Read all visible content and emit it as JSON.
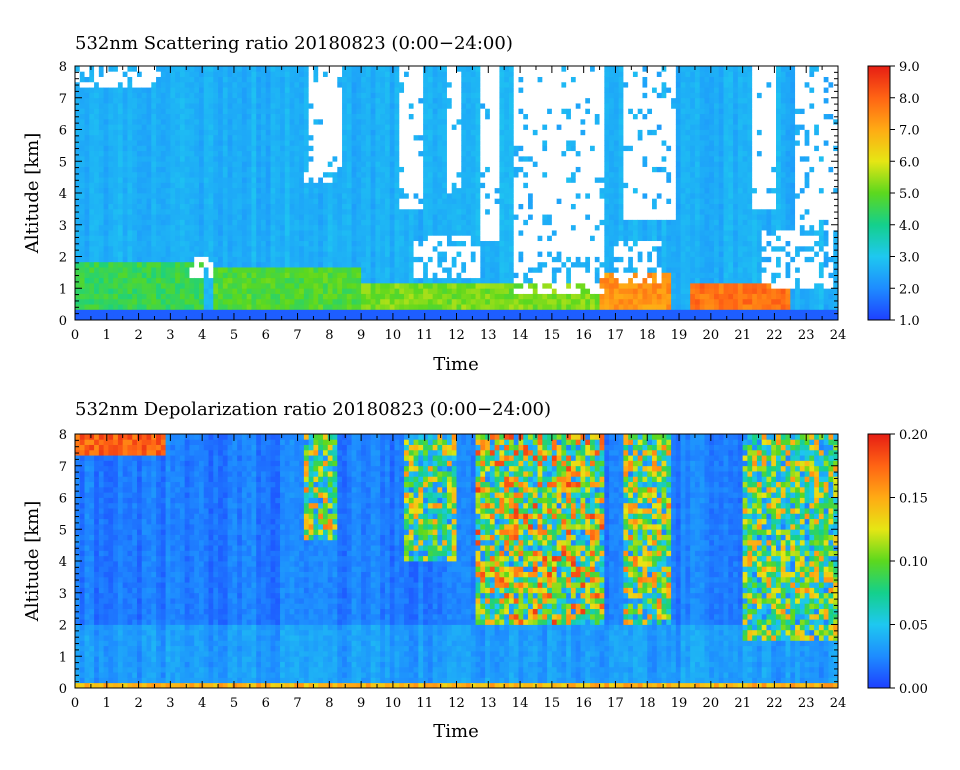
{
  "chart_data": [
    {
      "type": "heatmap",
      "title": "532nm Scattering ratio  20180823 (0:00−24:00)",
      "xlabel": "Time",
      "ylabel": "Altitude [km]",
      "xlim": [
        0,
        24
      ],
      "ylim": [
        0,
        8
      ],
      "xticks": [
        "0",
        "1",
        "2",
        "3",
        "4",
        "5",
        "6",
        "7",
        "8",
        "9",
        "10",
        "11",
        "12",
        "13",
        "14",
        "15",
        "16",
        "17",
        "18",
        "19",
        "20",
        "21",
        "22",
        "23",
        "24"
      ],
      "yticks": [
        "0",
        "1",
        "2",
        "3",
        "4",
        "5",
        "6",
        "7",
        "8"
      ],
      "colorbar": {
        "range": [
          1.0,
          9.0
        ],
        "ticks": [
          "1.0",
          "2.0",
          "3.0",
          "4.0",
          "5.0",
          "6.0",
          "7.0",
          "8.0",
          "9.0"
        ]
      },
      "clear_sky_value": 2.6,
      "boundary_layer": [
        {
          "x": [
            0,
            4
          ],
          "alt": [
            0.4,
            1.8
          ],
          "value": 4.5
        },
        {
          "x": [
            4.3,
            9
          ],
          "alt": [
            0.4,
            1.6
          ],
          "value": 4.8
        },
        {
          "x": [
            9,
            16.5
          ],
          "alt": [
            0.4,
            1.2
          ],
          "value": 5.2
        },
        {
          "x": [
            16.5,
            18.8
          ],
          "alt": [
            0.4,
            1.5
          ],
          "value": 7.3
        },
        {
          "x": [
            19.3,
            22.5
          ],
          "alt": [
            0.3,
            1.1
          ],
          "value": 7.8
        }
      ],
      "data_gaps": [
        {
          "x": [
            10.2,
            10.9
          ],
          "alt": [
            3.5,
            8
          ]
        },
        {
          "x": [
            11.7,
            12.1
          ],
          "alt": [
            4,
            8
          ]
        },
        {
          "x": [
            12.7,
            13.4
          ],
          "alt": [
            2.5,
            8
          ]
        },
        {
          "x": [
            13.8,
            16.7
          ],
          "alt": [
            2.2,
            8
          ]
        },
        {
          "x": [
            17.3,
            18.9
          ],
          "alt": [
            3.2,
            8
          ]
        },
        {
          "x": [
            21.3,
            22.1
          ],
          "alt": [
            3.5,
            8
          ]
        },
        {
          "x": [
            22.6,
            24
          ],
          "alt": [
            2.8,
            8
          ]
        },
        {
          "x": [
            7.3,
            8.4
          ],
          "alt": [
            4.8,
            8
          ]
        }
      ],
      "clouds": [
        {
          "x": [
            0,
            2.7
          ],
          "alt": [
            7.3,
            8
          ],
          "value": 9
        },
        {
          "x": [
            7.2,
            8.3
          ],
          "alt": [
            4.3,
            4.8
          ],
          "value": 9
        },
        {
          "x": [
            3.6,
            4.4
          ],
          "alt": [
            1.4,
            2.0
          ],
          "value": 9
        },
        {
          "x": [
            10.6,
            12.8
          ],
          "alt": [
            1.3,
            2.6
          ],
          "value": 9
        },
        {
          "x": [
            13.8,
            16.6
          ],
          "alt": [
            0.9,
            2.6
          ],
          "value": 9
        },
        {
          "x": [
            17.0,
            18.5
          ],
          "alt": [
            1.1,
            2.5
          ],
          "value": 9
        },
        {
          "x": [
            21.6,
            23.8
          ],
          "alt": [
            1.0,
            2.8
          ],
          "value": 9
        }
      ]
    },
    {
      "type": "heatmap",
      "title": "532nm Depolarization ratio  20180823 (0:00−24:00)",
      "xlabel": "Time",
      "ylabel": "Altitude [km]",
      "xlim": [
        0,
        24
      ],
      "ylim": [
        0,
        8
      ],
      "xticks": [
        "0",
        "1",
        "2",
        "3",
        "4",
        "5",
        "6",
        "7",
        "8",
        "9",
        "10",
        "11",
        "12",
        "13",
        "14",
        "15",
        "16",
        "17",
        "18",
        "19",
        "20",
        "21",
        "22",
        "23",
        "24"
      ],
      "yticks": [
        "0",
        "1",
        "2",
        "3",
        "4",
        "5",
        "6",
        "7",
        "8"
      ],
      "colorbar": {
        "range": [
          0.0,
          0.2
        ],
        "ticks": [
          "0.00",
          "0.05",
          "0.10",
          "0.15",
          "0.20"
        ]
      },
      "background_value": 0.02,
      "noisy_regions": [
        {
          "x": [
            7.2,
            8.3
          ],
          "alt": [
            4.6,
            8
          ],
          "value": 0.15
        },
        {
          "x": [
            10.4,
            12.0
          ],
          "alt": [
            4.0,
            8
          ],
          "value": 0.14
        },
        {
          "x": [
            12.6,
            16.7
          ],
          "alt": [
            2.0,
            8
          ],
          "value": 0.17
        },
        {
          "x": [
            17.2,
            18.8
          ],
          "alt": [
            2.0,
            8
          ],
          "value": 0.15
        },
        {
          "x": [
            21.0,
            24.0
          ],
          "alt": [
            1.5,
            8
          ],
          "value": 0.14
        }
      ],
      "clouds": [
        {
          "x": [
            0,
            2.8
          ],
          "alt": [
            7.3,
            8
          ],
          "value": 0.19
        },
        {
          "x": [
            0,
            24
          ],
          "alt": [
            0,
            0.15
          ],
          "value": 0.16
        }
      ]
    }
  ]
}
